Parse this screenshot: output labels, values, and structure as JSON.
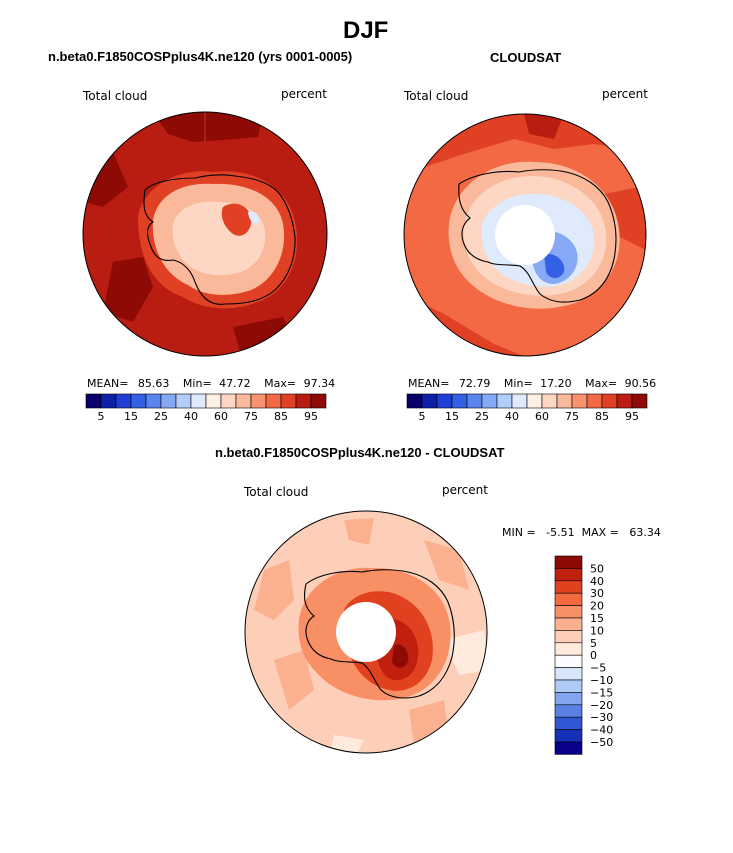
{
  "title": "DJF",
  "panels": [
    {
      "subtitle": "n.beta0.F1850COSPplus4K.ne120 (yrs 0001-0005)",
      "left_label": "Total cloud",
      "right_label": "percent",
      "stats": {
        "mean_label": "MEAN=",
        "mean": "85.63",
        "min_label": "Min=",
        "min": "47.72",
        "max_label": "Max=",
        "max": "97.34"
      }
    },
    {
      "subtitle": "CLOUDSAT",
      "left_label": "Total cloud",
      "right_label": "percent",
      "stats": {
        "mean_label": "MEAN=",
        "mean": "72.79",
        "min_label": "Min=",
        "min": "17.20",
        "max_label": "Max=",
        "max": "90.56"
      }
    },
    {
      "subtitle": "n.beta0.F1850COSPplus4K.ne120 - CLOUDSAT",
      "left_label": "Total cloud",
      "right_label": "percent",
      "stats_text": "MIN =   -5.51  MAX =   63.34"
    }
  ],
  "chart_data": [
    {
      "type": "heatmap",
      "projection": "south-polar-stereographic",
      "title": "n.beta0.F1850COSPplus4K.ne120 (yrs 0001-0005)",
      "variable": "Total cloud",
      "units": "percent",
      "mean": 85.63,
      "min": 47.72,
      "max": 97.34,
      "colorbar": {
        "levels": [
          5,
          10,
          15,
          20,
          25,
          30,
          40,
          50,
          60,
          65,
          75,
          80,
          85,
          90,
          95
        ],
        "tick_labels": [
          "5",
          "15",
          "25",
          "40",
          "60",
          "75",
          "85",
          "95"
        ],
        "colors": [
          "#08006b",
          "#0d1fa6",
          "#1f3fd6",
          "#3460e6",
          "#5a84ef",
          "#86a9f5",
          "#b3cdfa",
          "#dfeafd",
          "#fff0e6",
          "#fdd7c3",
          "#fbb99c",
          "#f9926e",
          "#f26944",
          "#e04125",
          "#b91c10",
          "#8e0a05"
        ]
      },
      "field_summary": {
        "ocean": "85-95",
        "antarctic_interior": "60-75",
        "antarctic_coast_ring": "75-85"
      }
    },
    {
      "type": "heatmap",
      "projection": "south-polar-stereographic",
      "title": "CLOUDSAT",
      "variable": "Total cloud",
      "units": "percent",
      "mean": 72.79,
      "min": 17.2,
      "max": 90.56,
      "colorbar": {
        "levels": [
          5,
          10,
          15,
          20,
          25,
          30,
          40,
          50,
          60,
          65,
          75,
          80,
          85,
          90,
          95
        ],
        "tick_labels": [
          "5",
          "15",
          "25",
          "40",
          "60",
          "75",
          "85",
          "95"
        ],
        "colors": [
          "#08006b",
          "#0d1fa6",
          "#1f3fd6",
          "#3460e6",
          "#5a84ef",
          "#86a9f5",
          "#b3cdfa",
          "#dfeafd",
          "#fff0e6",
          "#fdd7c3",
          "#fbb99c",
          "#f9926e",
          "#f26944",
          "#e04125",
          "#b91c10",
          "#8e0a05"
        ]
      },
      "field_summary": {
        "ocean": "75-90",
        "antarctic_interior": "20-50",
        "polar_cap": "missing"
      }
    },
    {
      "type": "heatmap",
      "projection": "south-polar-stereographic",
      "title": "n.beta0.F1850COSPplus4K.ne120 - CLOUDSAT",
      "variable": "Total cloud",
      "units": "percent",
      "min": -5.51,
      "max": 63.34,
      "colorbar": {
        "levels": [
          50,
          40,
          30,
          20,
          15,
          10,
          5,
          0,
          -5,
          -10,
          -15,
          -20,
          -30,
          -40,
          -50
        ],
        "tick_labels": [
          "50",
          "40",
          "30",
          "20",
          "15",
          "10",
          "5",
          "0",
          "−5",
          "−10",
          "−15",
          "−20",
          "−30",
          "−40",
          "−50"
        ],
        "colors": [
          "#8e0a05",
          "#c2200f",
          "#e0421f",
          "#f26a3d",
          "#f98f64",
          "#fbb190",
          "#fdcfb8",
          "#ffeadd",
          "#fafcff",
          "#d8e6fb",
          "#aecaf6",
          "#82a5ef",
          "#5a80e6",
          "#3257d6",
          "#1630b8",
          "#08008c"
        ]
      },
      "field_summary": {
        "ocean": "5-15",
        "antarctic_interior": "30-50",
        "polar_cap": "missing"
      }
    }
  ]
}
